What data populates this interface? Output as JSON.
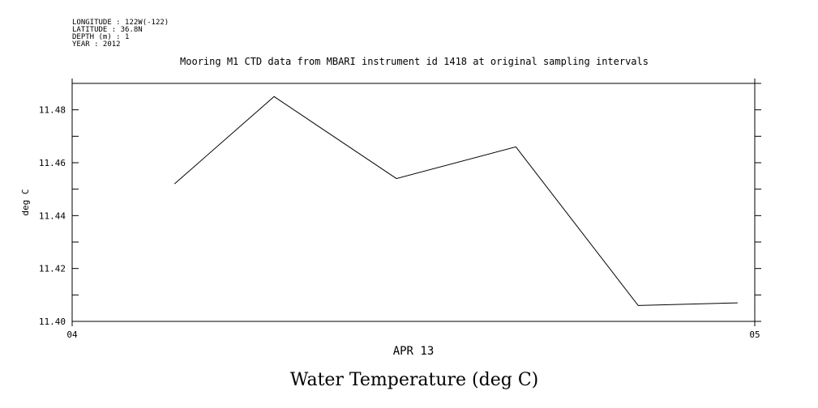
{
  "header": {
    "meta_lines": [
      "LONGITUDE : 122W(-122)",
      "LATITUDE : 36.8N",
      "DEPTH (m) : 1",
      "YEAR : 2012"
    ],
    "title": "Mooring M1 CTD data from MBARI instrument id 1418 at original sampling intervals"
  },
  "footer": {
    "title": "Water Temperature (deg C)"
  },
  "chart_data": {
    "type": "line",
    "title": "Mooring M1 CTD data from MBARI instrument id 1418 at original sampling intervals",
    "xlabel": "APR 13",
    "ylabel": "deg C",
    "x_tick_labels": [
      "04",
      "05"
    ],
    "x_domain_hours": [
      0,
      24
    ],
    "ylim": [
      11.4,
      11.49
    ],
    "y_tick_labels": [
      "11.40",
      "11.42",
      "11.44",
      "11.46",
      "11.48"
    ],
    "y_ticks": [
      11.4,
      11.42,
      11.44,
      11.46,
      11.48
    ],
    "y_minor_ticks": [
      11.41,
      11.43,
      11.45,
      11.47,
      11.49
    ],
    "series": [
      {
        "x_hours": [
          3.6,
          7.1,
          11.4,
          15.6,
          19.9,
          23.4
        ],
        "values": [
          11.452,
          11.485,
          11.454,
          11.466,
          11.406,
          11.407
        ]
      }
    ],
    "grid": false,
    "line_color": "#000000"
  }
}
